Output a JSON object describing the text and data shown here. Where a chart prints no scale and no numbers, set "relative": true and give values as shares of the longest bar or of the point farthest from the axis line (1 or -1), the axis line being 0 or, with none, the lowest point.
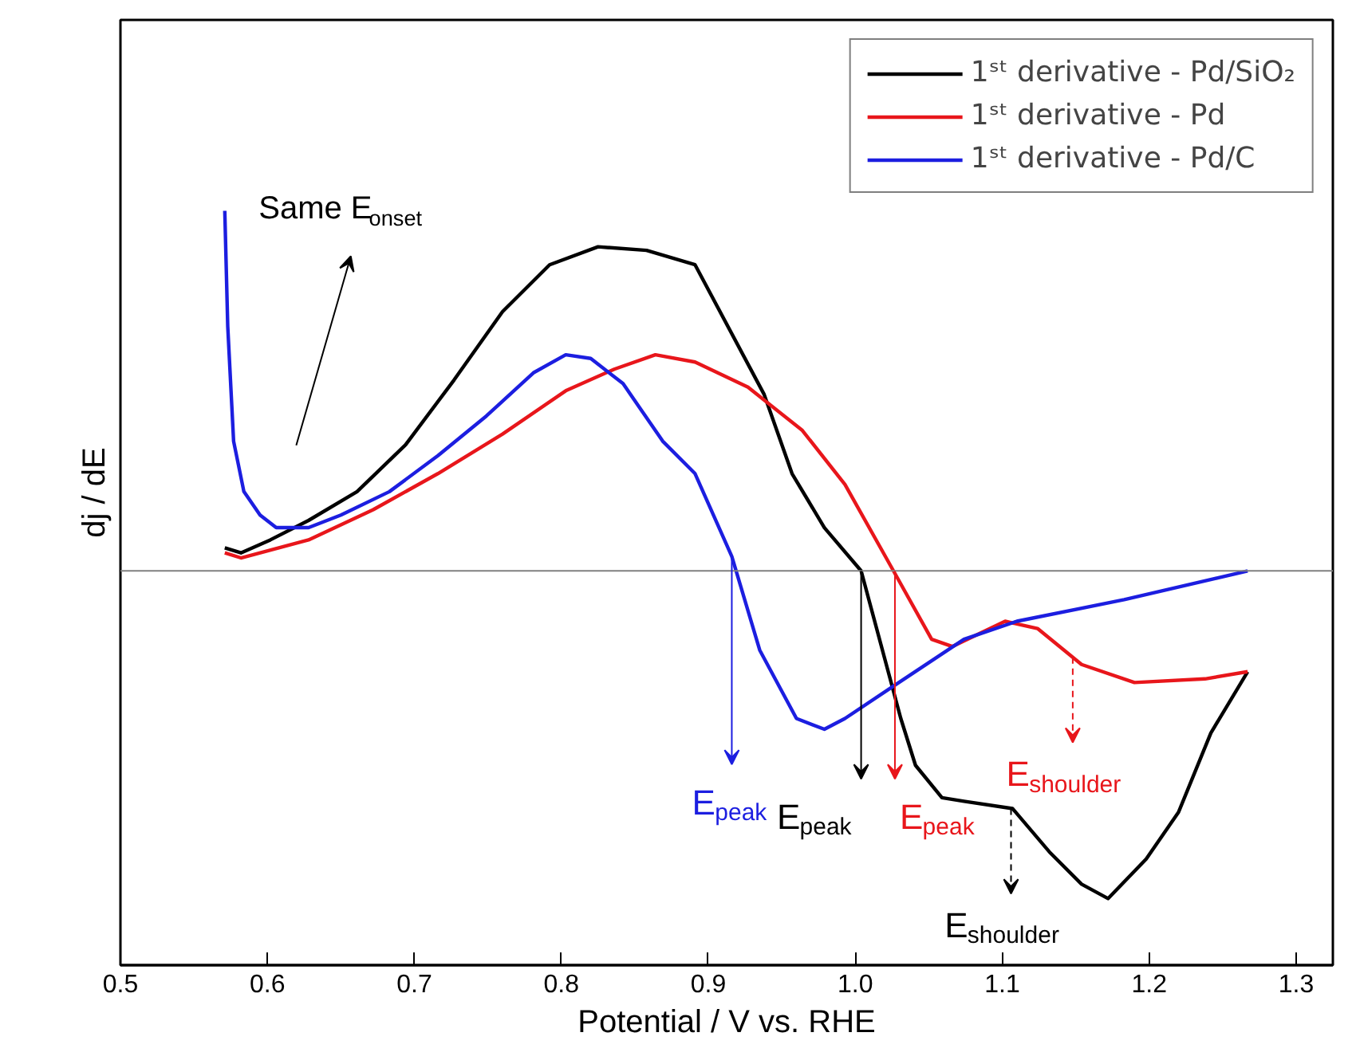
{
  "chart_data": {
    "type": "line",
    "relative": true,
    "xlabel": "Potential / V vs. RHE",
    "ylabel": "dj / dE",
    "xlim": [
      0.5,
      1.325
    ],
    "xticks": [
      {
        "value": 0.5,
        "label": "0.5"
      },
      {
        "value": 0.6,
        "label": "0.6"
      },
      {
        "value": 0.7,
        "label": "0.7"
      },
      {
        "value": 0.8,
        "label": "0.8"
      },
      {
        "value": 0.9,
        "label": "0.9"
      },
      {
        "value": 1.0,
        "label": "1.0"
      },
      {
        "value": 1.1,
        "label": "1.1"
      },
      {
        "value": 1.2,
        "label": "1.2"
      },
      {
        "value": 1.3,
        "label": "1.3"
      }
    ],
    "grid": false,
    "legend": "top right",
    "marker": "none",
    "line_style": "solid",
    "series": [
      {
        "name": "1ˢᵗ derivative - Pd/SiO₂",
        "color": "#000000",
        "x": [
          0.571,
          0.582,
          0.602,
          0.628,
          0.661,
          0.694,
          0.727,
          0.76,
          0.792,
          0.825,
          0.858,
          0.891,
          0.938,
          0.957,
          0.979,
          1.004,
          1.031,
          1.041,
          1.059,
          1.074,
          1.107,
          1.132,
          1.154,
          1.172,
          1.198,
          1.22,
          1.242,
          1.267
        ],
        "values": [
          0.064,
          0.05,
          0.086,
          0.14,
          0.22,
          0.35,
          0.53,
          0.72,
          0.85,
          0.9,
          0.89,
          0.85,
          0.49,
          0.27,
          0.12,
          0.0,
          -0.41,
          -0.54,
          -0.63,
          -0.64,
          -0.66,
          -0.78,
          -0.87,
          -0.91,
          -0.8,
          -0.67,
          -0.45,
          -0.28
        ]
      },
      {
        "name": "1ˢᵗ derivative - Pd",
        "color": "#e8161b",
        "x": [
          0.571,
          0.582,
          0.628,
          0.672,
          0.716,
          0.76,
          0.803,
          0.836,
          0.864,
          0.891,
          0.927,
          0.964,
          0.993,
          1.026,
          1.052,
          1.066,
          1.102,
          1.124,
          1.154,
          1.19,
          1.238,
          1.267
        ],
        "values": [
          0.05,
          0.036,
          0.086,
          0.17,
          0.27,
          0.38,
          0.5,
          0.56,
          0.6,
          0.58,
          0.51,
          0.39,
          0.24,
          0.0,
          -0.19,
          -0.21,
          -0.14,
          -0.16,
          -0.26,
          -0.31,
          -0.3,
          -0.28
        ]
      },
      {
        "name": "1ˢᵗ derivative - Pd/C",
        "color": "#1c1ee0",
        "x": [
          0.571,
          0.573,
          0.577,
          0.584,
          0.595,
          0.606,
          0.628,
          0.65,
          0.683,
          0.716,
          0.749,
          0.781,
          0.803,
          0.82,
          0.842,
          0.869,
          0.891,
          0.916,
          0.935,
          0.96,
          0.979,
          0.993,
          1.026,
          1.074,
          1.11,
          1.183,
          1.267
        ],
        "values": [
          1.0,
          0.68,
          0.36,
          0.22,
          0.155,
          0.12,
          0.12,
          0.155,
          0.22,
          0.32,
          0.43,
          0.55,
          0.6,
          0.59,
          0.52,
          0.36,
          0.27,
          0.04,
          -0.22,
          -0.41,
          -0.44,
          -0.41,
          -0.32,
          -0.19,
          -0.14,
          -0.08,
          0.0
        ]
      }
    ],
    "annotations": [
      "Same E$_{onset}$",
      {
        "text": "E$_{peak}$",
        "x": 0.916,
        "y": 0.04
      },
      {
        "text": "E$_{peak}$",
        "x": 1.004,
        "y": 0.0
      },
      {
        "text": "E$_{peak}$",
        "x": 1.027,
        "y": 0.0
      },
      {
        "text": "E$_{shoulder}$",
        "x": 1.148,
        "y": -0.24
      },
      {
        "text": "E$_{shoulder}$",
        "x": 1.106,
        "y": -0.66
      }
    ]
  }
}
